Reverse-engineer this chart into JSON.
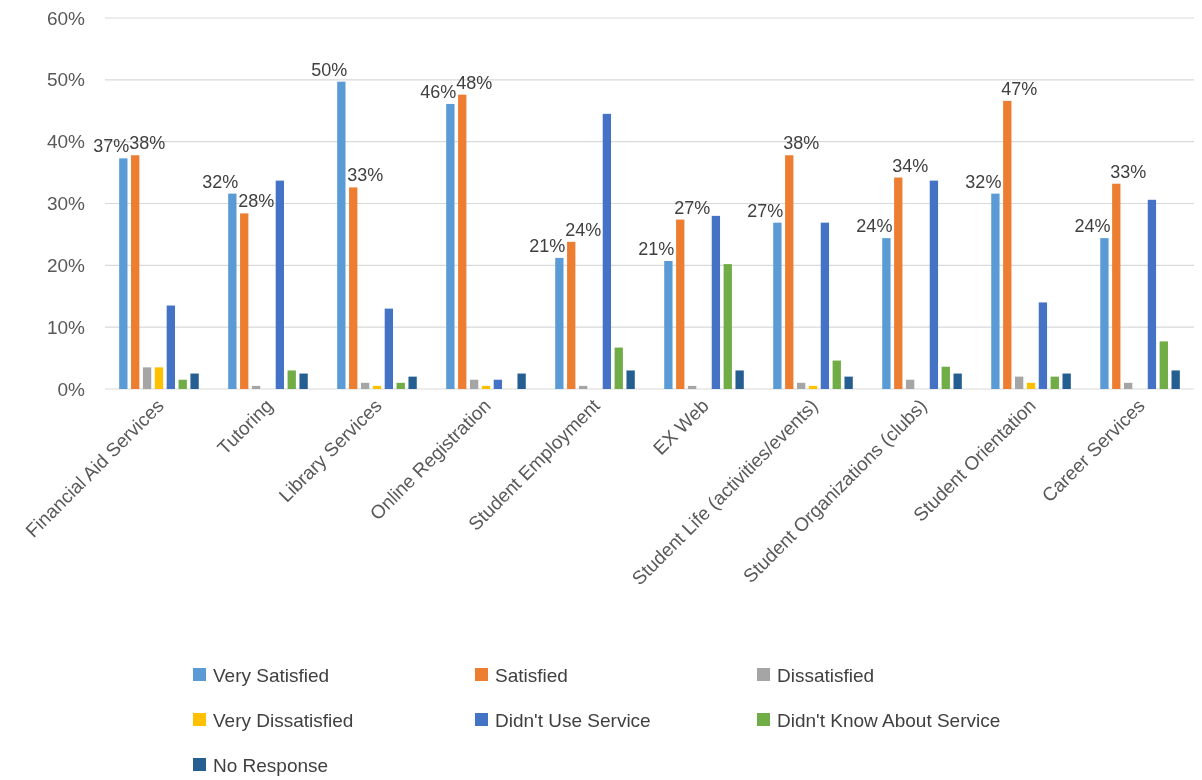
{
  "chart_data": {
    "type": "bar",
    "categories": [
      "Financial Aid Services",
      "Tutoring",
      "Library Services",
      "Online Registration",
      "Student Employment",
      "EX Web",
      "Student Life (activities/events)",
      "Student Organizations (clubs)",
      "Student Orientation",
      "Career Services"
    ],
    "series": [
      {
        "name": "Very Satisfied",
        "color": "#5b9bd5",
        "values": [
          37.3,
          31.6,
          49.7,
          46.1,
          21.2,
          20.7,
          26.9,
          24.4,
          31.6,
          24.4
        ],
        "value_labels": [
          "37%",
          "32%",
          "50%",
          "46%",
          "21%",
          "21%",
          "27%",
          "24%",
          "32%",
          "24%"
        ]
      },
      {
        "name": "Satisfied",
        "color": "#ed7d31",
        "values": [
          37.8,
          28.4,
          32.6,
          47.6,
          23.8,
          27.4,
          37.8,
          34.2,
          46.6,
          33.2
        ],
        "value_labels": [
          "38%",
          "28%",
          "33%",
          "48%",
          "24%",
          "27%",
          "38%",
          "34%",
          "47%",
          "33%"
        ]
      },
      {
        "name": "Dissatisfied",
        "color": "#a5a5a5",
        "values": [
          3.5,
          0.5,
          1.0,
          1.5,
          0.5,
          0.5,
          1.0,
          1.5,
          2.0,
          1.0
        ]
      },
      {
        "name": "Very Dissatisfied",
        "color": "#ffc000",
        "values": [
          3.5,
          0,
          0.5,
          0.5,
          0,
          0,
          0.5,
          0,
          1.0,
          0
        ]
      },
      {
        "name": "Didn't Use Service",
        "color": "#4472c4",
        "values": [
          13.5,
          33.7,
          13.0,
          1.5,
          44.5,
          28.0,
          26.9,
          33.7,
          14.0,
          30.6
        ]
      },
      {
        "name": "Didn't Know About Service",
        "color": "#70ad47",
        "values": [
          1.5,
          3.0,
          1.0,
          0,
          6.7,
          20.2,
          4.6,
          3.6,
          2.0,
          7.7
        ]
      },
      {
        "name": "No Response",
        "color": "#255e91",
        "values": [
          2.5,
          2.5,
          2.0,
          2.5,
          3.0,
          3.0,
          2.0,
          2.5,
          2.5,
          3.0
        ]
      }
    ],
    "ylim": [
      0,
      60
    ],
    "yticks": [
      {
        "value": 0,
        "label": "0%"
      },
      {
        "value": 10,
        "label": "10%"
      },
      {
        "value": 20,
        "label": "20%"
      },
      {
        "value": 30,
        "label": "30%"
      },
      {
        "value": 40,
        "label": "40%"
      },
      {
        "value": 50,
        "label": "50%"
      },
      {
        "value": 60,
        "label": "60%"
      }
    ],
    "grid": "y",
    "legend": "bottom"
  }
}
